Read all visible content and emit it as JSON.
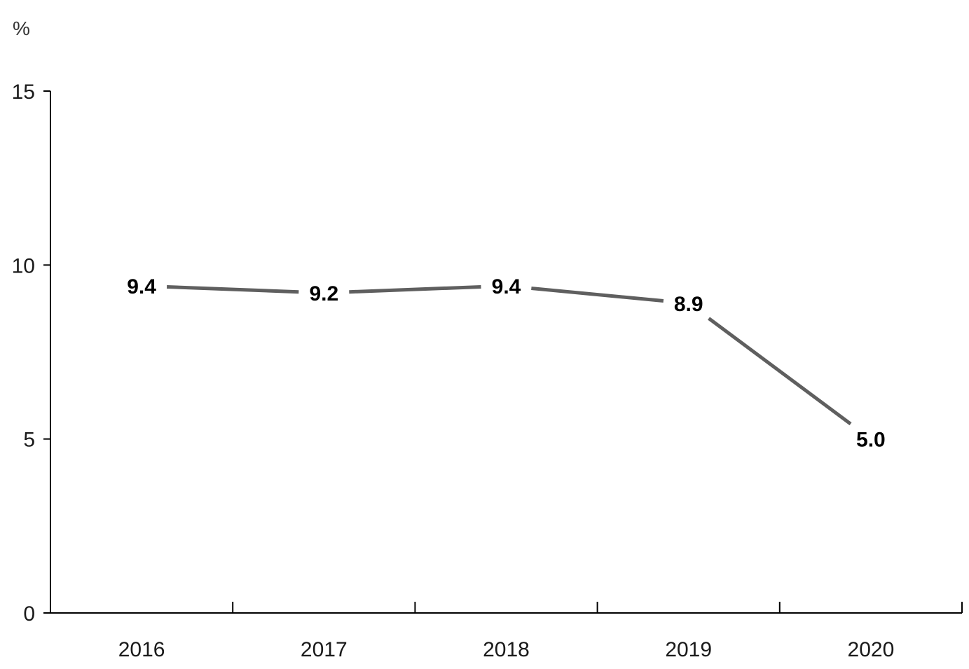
{
  "chart_data": {
    "type": "line",
    "title": "",
    "xlabel": "",
    "ylabel": "%",
    "categories": [
      "2016",
      "2017",
      "2018",
      "2019",
      "2020"
    ],
    "series": [
      {
        "values": [
          9.4,
          9.2,
          9.4,
          8.9,
          5.0
        ]
      }
    ],
    "data_labels": [
      "9.4",
      "9.2",
      "9.4",
      "8.9",
      "5.0"
    ],
    "ylim": [
      0,
      15
    ],
    "yticks": [
      0,
      5,
      10,
      15
    ],
    "ytick_labels": [
      "0",
      "5",
      "10",
      "15"
    ],
    "grid": false,
    "legend": "none",
    "colors": {
      "line": "#5f5f5f",
      "axis": "#000000"
    }
  }
}
